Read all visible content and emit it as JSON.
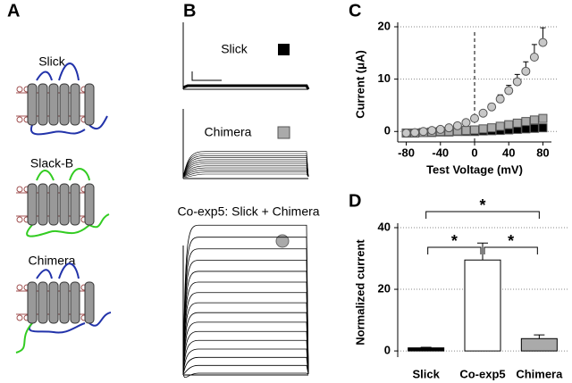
{
  "panel_labels": [
    "A",
    "B",
    "C",
    "D"
  ],
  "diagram_labels": [
    "Slick",
    "Slack-B",
    "Chimera"
  ],
  "trace_labels": [
    "Slick",
    "Chimera",
    "Co-exp5: Slick + Chimera"
  ],
  "chart_data": [
    {
      "type": "line",
      "xlabel": "Test Voltage (mV)",
      "ylabel": "Current (μA)",
      "x": [
        -80,
        -70,
        -60,
        -50,
        -40,
        -30,
        -20,
        -10,
        0,
        10,
        20,
        30,
        40,
        50,
        60,
        70,
        80
      ],
      "xlim": [
        -90,
        90
      ],
      "xticks": [
        -80,
        -40,
        0,
        40,
        80
      ],
      "ylim": [
        -2,
        20
      ],
      "yticks": [
        0,
        10,
        20
      ],
      "grid": true,
      "series": [
        {
          "color": "#000000",
          "marker": "square",
          "values": [
            -0.3,
            -0.3,
            -0.2,
            -0.2,
            -0.1,
            -0.1,
            0,
            0,
            0,
            0.1,
            0.15,
            0.2,
            0.3,
            0.4,
            0.5,
            0.6,
            0.7
          ]
        },
        {
          "color": "#aaaaaa",
          "marker": "square",
          "values": [
            -0.3,
            -0.3,
            -0.2,
            -0.1,
            0,
            0,
            0.1,
            0.2,
            0.3,
            0.5,
            0.7,
            1.0,
            1.3,
            1.6,
            1.9,
            2.2,
            2.5
          ]
        },
        {
          "color": "#c8c8c8",
          "marker": "circle",
          "values": [
            -0.3,
            -0.2,
            0,
            0.2,
            0.4,
            0.7,
            1.1,
            1.7,
            2.5,
            3.5,
            4.7,
            6.2,
            7.8,
            9.5,
            11.5,
            14.2,
            17
          ],
          "errors": [
            0.1,
            0.1,
            0.1,
            0.1,
            0.2,
            0.2,
            0.3,
            0.3,
            0.4,
            0.5,
            0.6,
            0.8,
            1.0,
            1.4,
            1.8,
            2.4,
            2.8
          ]
        }
      ]
    },
    {
      "type": "bar",
      "ylabel": "Normalized current",
      "categories": [
        "Slick",
        "Co-exp5",
        "Chimera"
      ],
      "values": [
        1,
        29.5,
        4
      ],
      "errors": [
        0.2,
        5.5,
        1.2
      ],
      "colors": [
        "#000000",
        "#ffffff",
        "#aaaaaa"
      ],
      "ylim": [
        -2,
        40
      ],
      "yticks": [
        0,
        20,
        40
      ],
      "grid": true,
      "significance": [
        {
          "label": "*",
          "categories": [
            "Slick",
            "Co-exp5"
          ]
        },
        {
          "label": "*",
          "categories": [
            "Co-exp5",
            "Chimera"
          ]
        },
        {
          "label": "*",
          "categories": [
            "Slick",
            "Chimera"
          ]
        }
      ]
    }
  ]
}
